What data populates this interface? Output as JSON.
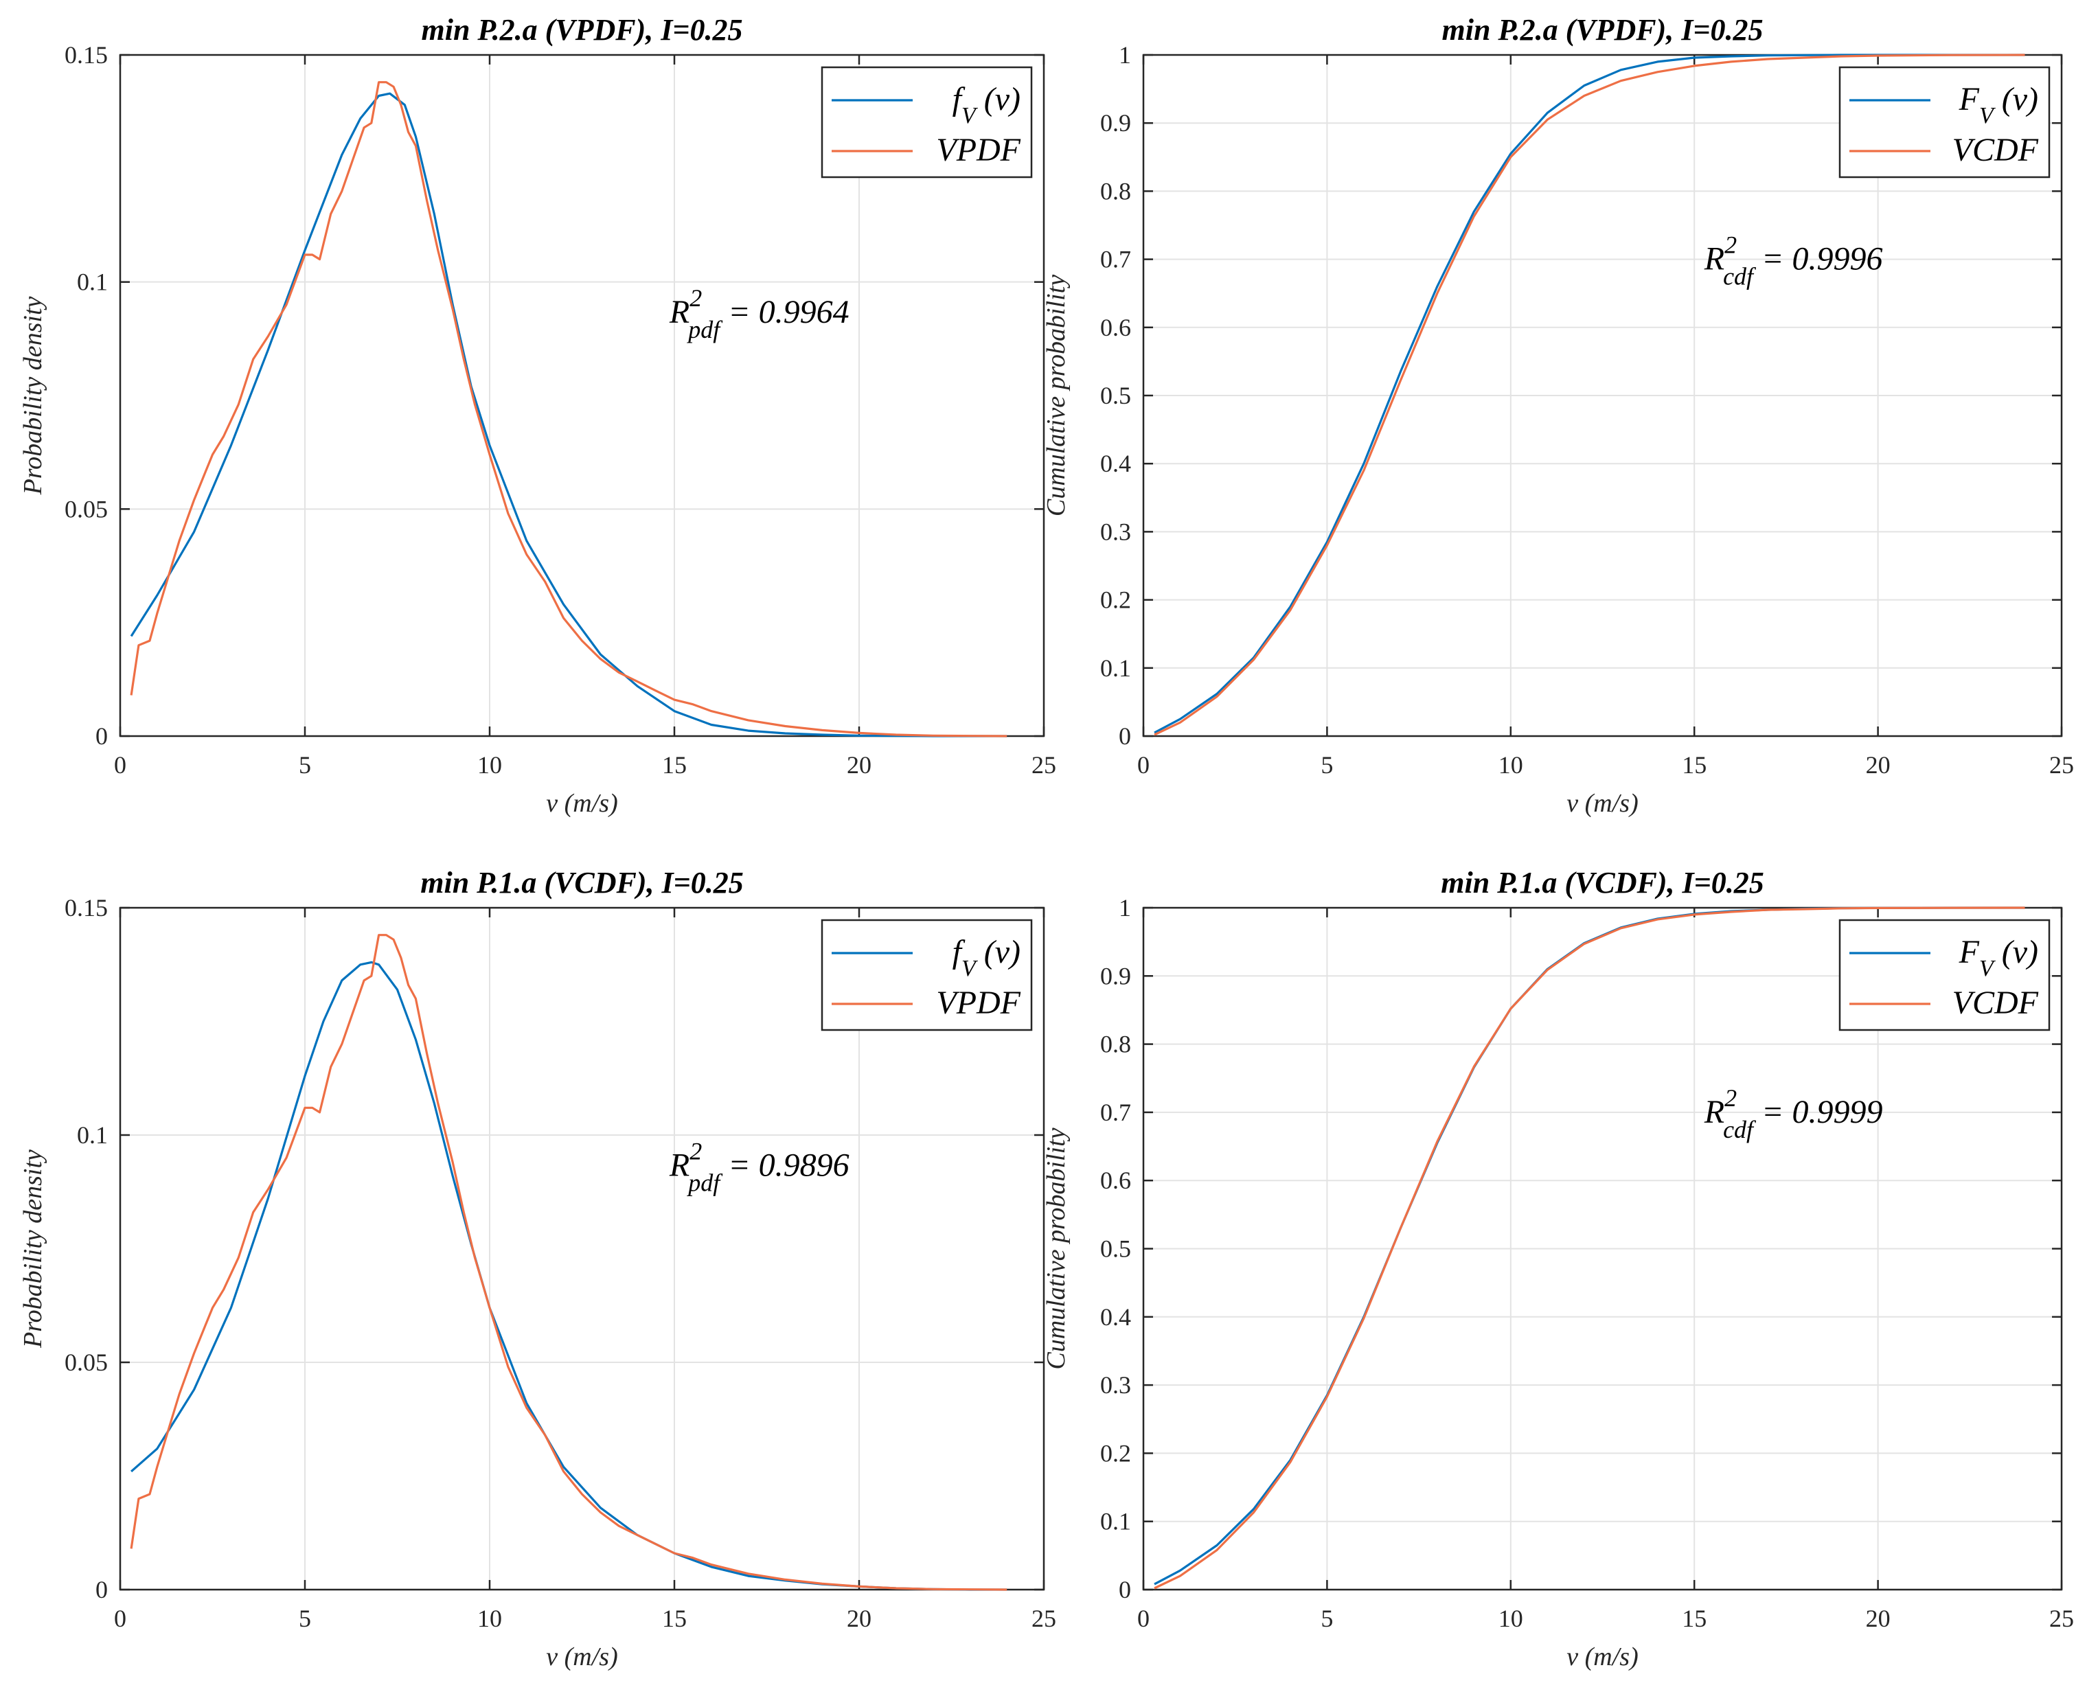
{
  "figure": {
    "background": "#ffffff"
  },
  "colors": {
    "model": "#0072BD",
    "empirical": "#EE6F45",
    "grid": "#e3e3e3",
    "axis": "#262626"
  },
  "chart_data": [
    {
      "id": "top-left",
      "type": "line",
      "title": "min P.2.a (VPDF), I=0.25",
      "xlabel": "v (m/s)",
      "ylabel": "Probability density",
      "xlim": [
        0,
        25
      ],
      "ylim": [
        0,
        0.15
      ],
      "xticks": [
        0,
        5,
        10,
        15,
        20,
        25
      ],
      "xtick_labels": [
        "0",
        "5",
        "10",
        "15",
        "20",
        "25"
      ],
      "yticks": [
        0,
        0.05,
        0.1,
        0.15
      ],
      "ytick_labels": [
        "0",
        "0.05",
        "0.1",
        "0.15"
      ],
      "grid": true,
      "legend_position": "top-right",
      "annotation": {
        "base": "R",
        "sup": "2",
        "sub": "pdf",
        "text": " = 0.9964",
        "pos_data": [
          17.3,
          0.091
        ]
      },
      "series": [
        {
          "name": "f_V (v)",
          "legend_main": "f",
          "legend_sub": "V",
          "legend_rest": " (v)",
          "color": "#0072BD",
          "x": [
            0.3,
            1,
            2,
            3,
            4,
            5,
            6,
            6.5,
            7,
            7.3,
            7.7,
            8,
            8.5,
            9,
            9.5,
            10,
            11,
            12,
            13,
            14,
            15,
            16,
            17,
            18,
            19,
            20,
            21,
            22,
            23,
            24
          ],
          "y": [
            0.022,
            0.031,
            0.045,
            0.064,
            0.085,
            0.107,
            0.128,
            0.136,
            0.141,
            0.1415,
            0.139,
            0.132,
            0.115,
            0.095,
            0.077,
            0.064,
            0.043,
            0.029,
            0.018,
            0.011,
            0.0055,
            0.0025,
            0.0012,
            0.0006,
            0.0003,
            0.0001,
            5e-05,
            0,
            0,
            0
          ]
        },
        {
          "name": "VPDF",
          "color": "#EE6F45",
          "x": [
            0.3,
            0.5,
            0.8,
            1,
            1.3,
            1.6,
            2,
            2.3,
            2.5,
            2.8,
            3.2,
            3.6,
            4,
            4.5,
            5,
            5.2,
            5.4,
            5.7,
            6,
            6.3,
            6.6,
            6.8,
            7,
            7.2,
            7.4,
            7.6,
            7.8,
            8,
            8.3,
            8.6,
            9,
            9.3,
            9.6,
            10,
            10.5,
            11,
            11.5,
            12,
            12.5,
            13,
            13.5,
            14,
            14.5,
            15,
            15.5,
            16,
            17,
            18,
            19,
            20,
            21,
            22,
            23,
            24
          ],
          "y": [
            0.009,
            0.02,
            0.021,
            0.027,
            0.035,
            0.043,
            0.052,
            0.058,
            0.062,
            0.066,
            0.073,
            0.083,
            0.088,
            0.095,
            0.106,
            0.106,
            0.105,
            0.115,
            0.12,
            0.127,
            0.134,
            0.135,
            0.144,
            0.144,
            0.143,
            0.139,
            0.133,
            0.13,
            0.118,
            0.107,
            0.094,
            0.083,
            0.073,
            0.062,
            0.049,
            0.04,
            0.034,
            0.026,
            0.021,
            0.017,
            0.014,
            0.012,
            0.01,
            0.008,
            0.007,
            0.0055,
            0.0035,
            0.0022,
            0.0013,
            0.0007,
            0.0003,
            0.0001,
            5e-05,
            0
          ]
        }
      ]
    },
    {
      "id": "top-right",
      "type": "line",
      "title": "min P.2.a (VPDF), I=0.25",
      "xlabel": "v (m/s)",
      "ylabel": "Cumulative probability",
      "xlim": [
        0,
        25
      ],
      "ylim": [
        0,
        1
      ],
      "xticks": [
        0,
        5,
        10,
        15,
        20,
        25
      ],
      "xtick_labels": [
        "0",
        "5",
        "10",
        "15",
        "20",
        "25"
      ],
      "yticks": [
        0,
        0.1,
        0.2,
        0.3,
        0.4,
        0.5,
        0.6,
        0.7,
        0.8,
        0.9,
        1
      ],
      "ytick_labels": [
        "0",
        "0.1",
        "0.2",
        "0.3",
        "0.4",
        "0.5",
        "0.6",
        "0.7",
        "0.8",
        "0.9",
        "1"
      ],
      "grid": true,
      "legend_position": "top-right",
      "annotation": {
        "base": "R",
        "sup": "2",
        "sub": "cdf",
        "text": " = 0.9996",
        "pos_data": [
          17.7,
          0.685
        ]
      },
      "series": [
        {
          "name": "F_V (v)",
          "legend_main": "F",
          "legend_sub": "V",
          "legend_rest": " (v)",
          "color": "#0072BD",
          "x": [
            0.3,
            1,
            2,
            3,
            4,
            5,
            6,
            7,
            8,
            9,
            10,
            11,
            12,
            13,
            14,
            15,
            16,
            17,
            18,
            19,
            20,
            22,
            24
          ],
          "y": [
            0.005,
            0.025,
            0.062,
            0.115,
            0.19,
            0.285,
            0.4,
            0.535,
            0.66,
            0.77,
            0.855,
            0.915,
            0.955,
            0.978,
            0.99,
            0.996,
            0.998,
            0.9993,
            0.9997,
            1,
            1,
            1,
            1
          ]
        },
        {
          "name": "VCDF",
          "color": "#EE6F45",
          "x": [
            0.3,
            1,
            2,
            3,
            4,
            5,
            6,
            7,
            8,
            9,
            10,
            11,
            12,
            13,
            14,
            15,
            16,
            17,
            18,
            19,
            20,
            22,
            24
          ],
          "y": [
            0.002,
            0.02,
            0.058,
            0.112,
            0.185,
            0.28,
            0.39,
            0.522,
            0.65,
            0.763,
            0.85,
            0.905,
            0.94,
            0.962,
            0.975,
            0.984,
            0.99,
            0.994,
            0.996,
            0.998,
            0.999,
            0.9998,
            1
          ]
        }
      ]
    },
    {
      "id": "bottom-left",
      "type": "line",
      "title": "min P.1.a (VCDF), I=0.25",
      "xlabel": "v (m/s)",
      "ylabel": "Probability density",
      "xlim": [
        0,
        25
      ],
      "ylim": [
        0,
        0.15
      ],
      "xticks": [
        0,
        5,
        10,
        15,
        20,
        25
      ],
      "xtick_labels": [
        "0",
        "5",
        "10",
        "15",
        "20",
        "25"
      ],
      "yticks": [
        0,
        0.05,
        0.1,
        0.15
      ],
      "ytick_labels": [
        "0",
        "0.05",
        "0.1",
        "0.15"
      ],
      "grid": true,
      "legend_position": "top-right",
      "annotation": {
        "base": "R",
        "sup": "2",
        "sub": "pdf",
        "text": " = 0.9896",
        "pos_data": [
          17.3,
          0.091
        ]
      },
      "series": [
        {
          "name": "f_V (v)",
          "legend_main": "f",
          "legend_sub": "V",
          "legend_rest": " (v)",
          "color": "#0072BD",
          "x": [
            0.3,
            1,
            2,
            3,
            4,
            5,
            5.5,
            6,
            6.5,
            6.8,
            7,
            7.5,
            8,
            8.5,
            9,
            9.5,
            10,
            11,
            12,
            13,
            14,
            15,
            16,
            17,
            18,
            19,
            20,
            21,
            22,
            23,
            24
          ],
          "y": [
            0.026,
            0.031,
            0.044,
            0.062,
            0.086,
            0.113,
            0.125,
            0.134,
            0.1375,
            0.138,
            0.1375,
            0.132,
            0.121,
            0.107,
            0.091,
            0.076,
            0.062,
            0.041,
            0.027,
            0.018,
            0.012,
            0.008,
            0.005,
            0.003,
            0.002,
            0.0012,
            0.0007,
            0.0003,
            0.0001,
            0,
            0
          ]
        },
        {
          "name": "VPDF",
          "color": "#EE6F45",
          "x": [
            0.3,
            0.5,
            0.8,
            1,
            1.3,
            1.6,
            2,
            2.3,
            2.5,
            2.8,
            3.2,
            3.6,
            4,
            4.5,
            5,
            5.2,
            5.4,
            5.7,
            6,
            6.3,
            6.6,
            6.8,
            7,
            7.2,
            7.4,
            7.6,
            7.8,
            8,
            8.3,
            8.6,
            9,
            9.3,
            9.6,
            10,
            10.5,
            11,
            11.5,
            12,
            12.5,
            13,
            13.5,
            14,
            14.5,
            15,
            15.5,
            16,
            17,
            18,
            19,
            20,
            21,
            22,
            23,
            24
          ],
          "y": [
            0.009,
            0.02,
            0.021,
            0.027,
            0.035,
            0.043,
            0.052,
            0.058,
            0.062,
            0.066,
            0.073,
            0.083,
            0.088,
            0.095,
            0.106,
            0.106,
            0.105,
            0.115,
            0.12,
            0.127,
            0.134,
            0.135,
            0.144,
            0.144,
            0.143,
            0.139,
            0.133,
            0.13,
            0.118,
            0.107,
            0.094,
            0.083,
            0.073,
            0.062,
            0.049,
            0.04,
            0.034,
            0.026,
            0.021,
            0.017,
            0.014,
            0.012,
            0.01,
            0.008,
            0.007,
            0.0055,
            0.0035,
            0.0022,
            0.0013,
            0.0007,
            0.0003,
            0.0001,
            5e-05,
            0
          ]
        }
      ]
    },
    {
      "id": "bottom-right",
      "type": "line",
      "title": "min P.1.a (VCDF), I=0.25",
      "xlabel": "v (m/s)",
      "ylabel": "Cumulative probability",
      "xlim": [
        0,
        25
      ],
      "ylim": [
        0,
        1
      ],
      "xticks": [
        0,
        5,
        10,
        15,
        20,
        25
      ],
      "xtick_labels": [
        "0",
        "5",
        "10",
        "15",
        "20",
        "25"
      ],
      "yticks": [
        0,
        0.1,
        0.2,
        0.3,
        0.4,
        0.5,
        0.6,
        0.7,
        0.8,
        0.9,
        1
      ],
      "ytick_labels": [
        "0",
        "0.1",
        "0.2",
        "0.3",
        "0.4",
        "0.5",
        "0.6",
        "0.7",
        "0.8",
        "0.9",
        "1"
      ],
      "grid": true,
      "legend_position": "top-right",
      "annotation": {
        "base": "R",
        "sup": "2",
        "sub": "cdf",
        "text": " = 0.9999",
        "pos_data": [
          17.7,
          0.685
        ]
      },
      "series": [
        {
          "name": "F_V (v)",
          "legend_main": "F",
          "legend_sub": "V",
          "legend_rest": " (v)",
          "color": "#0072BD",
          "x": [
            0.3,
            1,
            2,
            3,
            4,
            5,
            6,
            7,
            8,
            9,
            10,
            11,
            12,
            13,
            14,
            15,
            16,
            17,
            18,
            19,
            20,
            22,
            24
          ],
          "y": [
            0.008,
            0.028,
            0.065,
            0.118,
            0.19,
            0.285,
            0.4,
            0.53,
            0.655,
            0.766,
            0.852,
            0.91,
            0.948,
            0.971,
            0.984,
            0.991,
            0.995,
            0.997,
            0.9985,
            0.9993,
            0.9997,
            1,
            1
          ]
        },
        {
          "name": "VCDF",
          "color": "#EE6F45",
          "x": [
            0.3,
            1,
            2,
            3,
            4,
            5,
            6,
            7,
            8,
            9,
            10,
            11,
            12,
            13,
            14,
            15,
            16,
            17,
            18,
            19,
            20,
            22,
            24
          ],
          "y": [
            0.002,
            0.02,
            0.058,
            0.113,
            0.187,
            0.283,
            0.398,
            0.53,
            0.657,
            0.767,
            0.852,
            0.909,
            0.947,
            0.97,
            0.983,
            0.99,
            0.994,
            0.997,
            0.998,
            0.9992,
            0.9996,
            0.9999,
            1
          ]
        }
      ]
    }
  ]
}
